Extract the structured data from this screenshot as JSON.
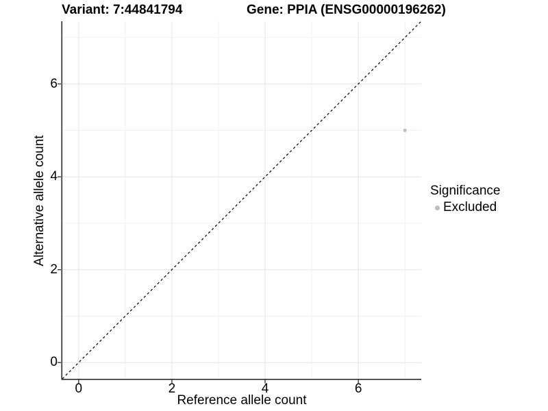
{
  "header": {
    "variant_title": "Variant: 7:44841794",
    "gene_title": "Gene: PPIA (ENSG00000196262)"
  },
  "chart_data": {
    "type": "scatter",
    "xlabel": "Reference allele count",
    "ylabel": "Alternative allele count",
    "xlim": [
      -0.35,
      7.35
    ],
    "ylim": [
      -0.35,
      7.35
    ],
    "x_ticks": [
      0,
      2,
      4,
      6
    ],
    "y_ticks": [
      0,
      2,
      4,
      6
    ],
    "minor_grid_x": [
      1,
      3,
      5,
      7
    ],
    "minor_grid_y": [
      1,
      3,
      5,
      7
    ],
    "grid": "on",
    "points": [
      {
        "x": 7,
        "y": 5,
        "series": "Excluded",
        "color": "#bdbdbd",
        "radius": 2.5
      }
    ],
    "reference_line": {
      "kind": "identity y=x",
      "from": [
        -0.35,
        -0.35
      ],
      "to": [
        7.35,
        7.35
      ],
      "style": "dashed",
      "color": "#000000"
    },
    "legend": {
      "title": "Significance",
      "position": "right",
      "items": [
        {
          "label": "Excluded",
          "color": "#bdbdbd"
        }
      ]
    },
    "colors": {
      "background": "#ffffff",
      "grid_major": "#e4e4e4",
      "grid_minor": "#f1f1f1",
      "axis_line": "#2f2f2f",
      "tick_mark": "#2f2f2f",
      "text": "#000000",
      "point": "#bdbdbd"
    }
  }
}
